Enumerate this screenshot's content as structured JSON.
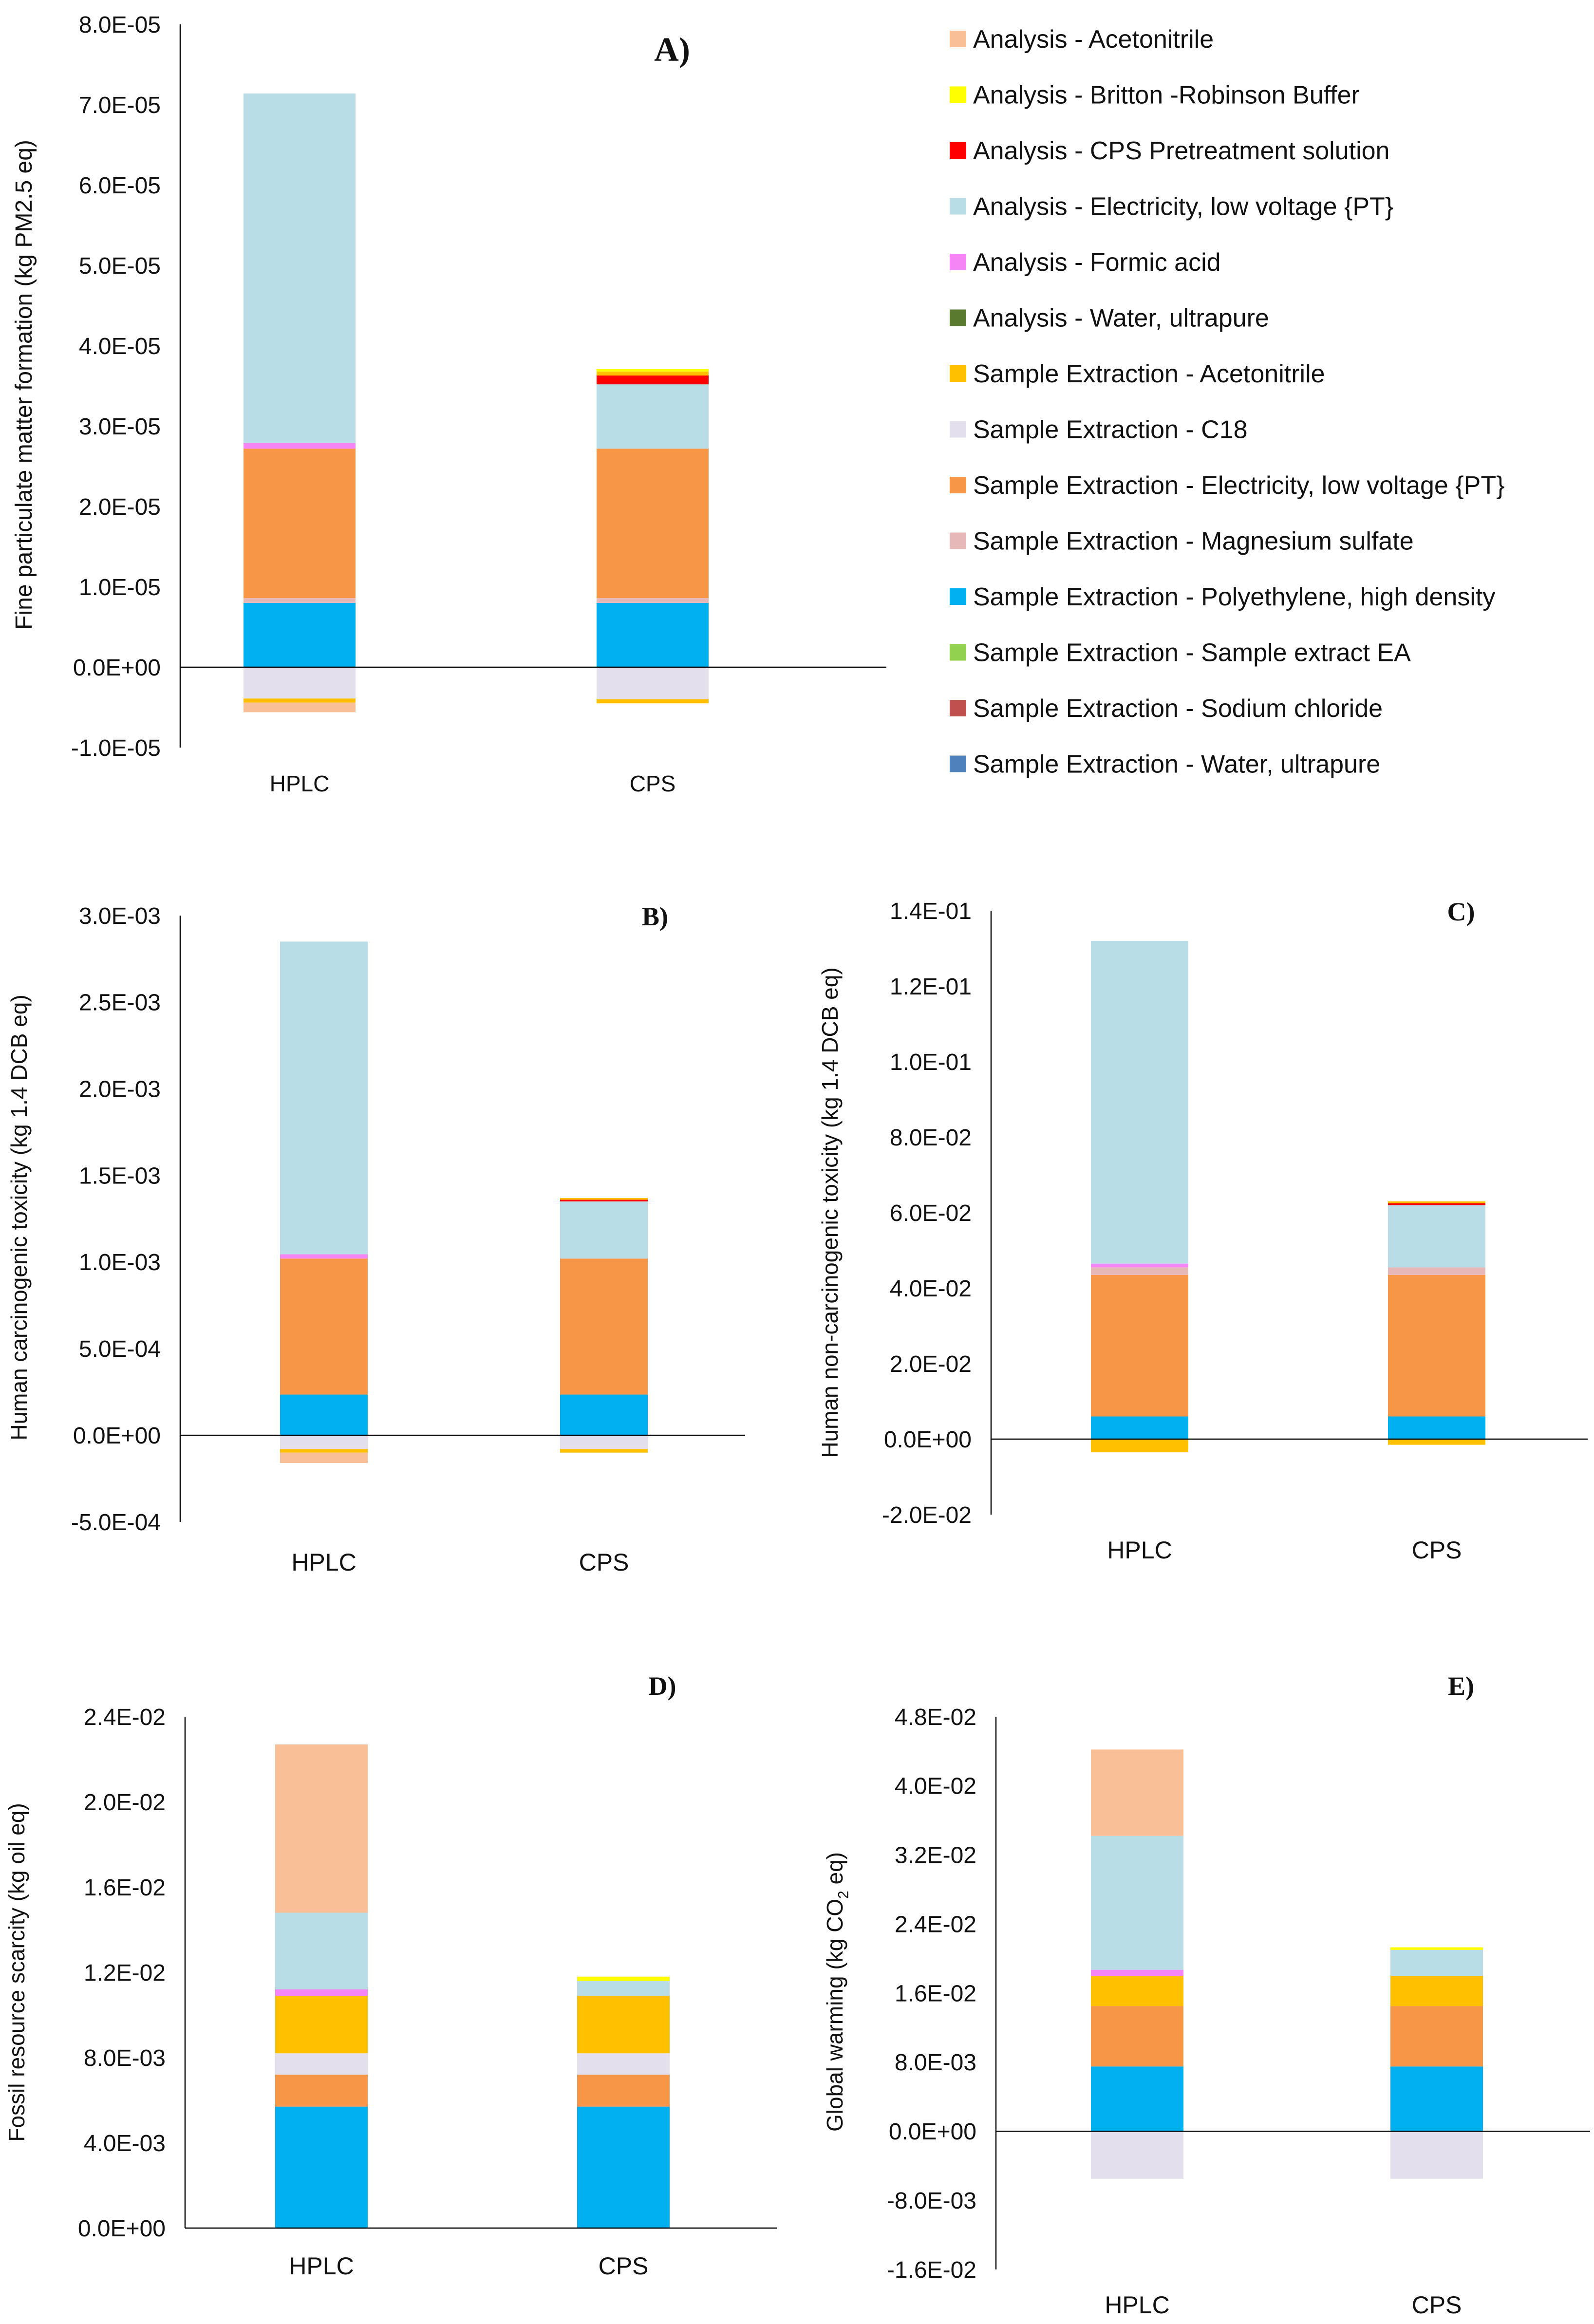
{
  "components": [
    {
      "key": "a_acn",
      "name": "Analysis - Acetonitrile",
      "color": "#F9C098"
    },
    {
      "key": "a_brb",
      "name": "Analysis - Britton -Robinson Buffer",
      "color": "#FFFF00"
    },
    {
      "key": "a_cps",
      "name": "Analysis - CPS Pretreatment solution",
      "color": "#FF0000"
    },
    {
      "key": "a_elec",
      "name": "Analysis - Electricity, low voltage {PT}",
      "color": "#B8DDE6"
    },
    {
      "key": "a_fa",
      "name": "Analysis - Formic acid",
      "color": "#F585F5"
    },
    {
      "key": "a_water",
      "name": "Analysis - Water, ultrapure",
      "color": "#5A7A30"
    },
    {
      "key": "s_acn",
      "name": "Sample Extraction - Acetonitrile",
      "color": "#FFC000"
    },
    {
      "key": "s_c18",
      "name": "Sample Extraction - C18",
      "color": "#E4DFEC"
    },
    {
      "key": "s_elec",
      "name": "Sample Extraction - Electricity, low voltage {PT}",
      "color": "#F79646"
    },
    {
      "key": "s_mgso4",
      "name": "Sample Extraction - Magnesium sulfate",
      "color": "#E6B8B7"
    },
    {
      "key": "s_hdpe",
      "name": "Sample Extraction - Polyethylene, high density",
      "color": "#00B0F0"
    },
    {
      "key": "s_ea",
      "name": "Sample Extraction - Sample extract EA",
      "color": "#92D050"
    },
    {
      "key": "s_nacl",
      "name": "Sample Extraction - Sodium chloride",
      "color": "#C0504D"
    },
    {
      "key": "s_water",
      "name": "Sample Extraction - Water, ultrapure",
      "color": "#4F81BD"
    }
  ],
  "chart_data": [
    {
      "id": "A",
      "type": "bar",
      "stacked": true,
      "title": "A)",
      "ylabel": "Fine particulate matter formation  (kg PM2.5 eq)",
      "ylim": [
        -1e-05,
        8e-05
      ],
      "yticks": [
        "8.0E-05",
        "7.0E-05",
        "6.0E-05",
        "5.0E-05",
        "4.0E-05",
        "3.0E-05",
        "2.0E-05",
        "1.0E-05",
        "0.0E+00",
        "-1.0E-05"
      ],
      "categories": [
        "HPLC",
        "CPS"
      ],
      "series": [
        {
          "key": "s_hdpe",
          "values": [
            8e-06,
            8e-06
          ]
        },
        {
          "key": "s_mgso4",
          "values": [
            6e-07,
            6e-07
          ]
        },
        {
          "key": "s_elec",
          "values": [
            1.86e-05,
            1.86e-05
          ]
        },
        {
          "key": "a_fa",
          "values": [
            7e-07,
            0
          ]
        },
        {
          "key": "a_elec",
          "values": [
            4.35e-05,
            8e-06
          ]
        },
        {
          "key": "a_cps",
          "values": [
            0,
            1.1e-06
          ]
        },
        {
          "key": "s_acn",
          "values": [
            0,
            5e-07
          ]
        },
        {
          "key": "a_brb",
          "values": [
            0,
            3e-07
          ]
        },
        {
          "key": "s_c18",
          "values": [
            -3.9e-06,
            -4e-06
          ]
        },
        {
          "key": "s_acn",
          "values": [
            -5e-07,
            -5e-07
          ],
          "negative": true
        },
        {
          "key": "a_acn",
          "values": [
            -1.2e-06,
            0
          ],
          "negative": true
        }
      ]
    },
    {
      "id": "B",
      "type": "bar",
      "stacked": true,
      "title": "B)",
      "ylabel": "Human carcinogenic toxicity (kg 1.4 DCB eq)",
      "ylim": [
        -0.0005,
        0.003
      ],
      "yticks": [
        "3.0E-03",
        "2.5E-03",
        "2.0E-03",
        "1.5E-03",
        "1.0E-03",
        "5.0E-04",
        "0.0E+00",
        "-5.0E-04"
      ],
      "categories": [
        "HPLC",
        "CPS"
      ],
      "series": [
        {
          "key": "s_hdpe",
          "values": [
            0.000235,
            0.000235
          ]
        },
        {
          "key": "s_elec",
          "values": [
            0.000785,
            0.000785
          ]
        },
        {
          "key": "a_fa",
          "values": [
            2.5e-05,
            0
          ]
        },
        {
          "key": "a_elec",
          "values": [
            0.001805,
            0.00033
          ]
        },
        {
          "key": "a_cps",
          "values": [
            0,
            1e-05
          ]
        },
        {
          "key": "s_acn",
          "values": [
            0,
            1e-05
          ]
        },
        {
          "key": "s_c18",
          "values": [
            -8e-05,
            -8e-05
          ]
        },
        {
          "key": "s_acn",
          "values": [
            -2e-05,
            -2e-05
          ],
          "negative": true
        },
        {
          "key": "a_acn",
          "values": [
            -6e-05,
            0
          ],
          "negative": true
        }
      ]
    },
    {
      "id": "C",
      "type": "bar",
      "stacked": true,
      "title": "C)",
      "ylabel": "Human non-carcinogenic toxicity (kg 1.4 DCB eq)",
      "ylim": [
        -0.02,
        0.14
      ],
      "yticks": [
        "1.4E-01",
        "1.2E-01",
        "1.0E-01",
        "8.0E-02",
        "6.0E-02",
        "4.0E-02",
        "2.0E-02",
        "0.0E+00",
        "-2.0E-02"
      ],
      "categories": [
        "HPLC",
        "CPS"
      ],
      "series": [
        {
          "key": "s_hdpe",
          "values": [
            0.006,
            0.006
          ]
        },
        {
          "key": "s_elec",
          "values": [
            0.0375,
            0.0375
          ]
        },
        {
          "key": "s_mgso4",
          "values": [
            0.002,
            0.002
          ]
        },
        {
          "key": "a_fa",
          "values": [
            0.001,
            0
          ]
        },
        {
          "key": "a_elec",
          "values": [
            0.0855,
            0.0165
          ]
        },
        {
          "key": "a_cps",
          "values": [
            0,
            0.0005
          ]
        },
        {
          "key": "s_acn",
          "values": [
            0,
            0.0005
          ]
        },
        {
          "key": "s_acn",
          "values": [
            -0.0035,
            -0.0015
          ],
          "negative": true
        }
      ]
    },
    {
      "id": "D",
      "type": "bar",
      "stacked": true,
      "title": "D)",
      "ylabel": "Fossil resource scarcity (kg oil eq)",
      "ylim": [
        0,
        0.024
      ],
      "yticks": [
        "2.4E-02",
        "2.0E-02",
        "1.6E-02",
        "1.2E-02",
        "8.0E-03",
        "4.0E-03",
        "0.0E+00"
      ],
      "categories": [
        "HPLC",
        "CPS"
      ],
      "series": [
        {
          "key": "s_hdpe",
          "values": [
            0.0057,
            0.0057
          ]
        },
        {
          "key": "s_elec",
          "values": [
            0.0015,
            0.0015
          ]
        },
        {
          "key": "s_c18",
          "values": [
            0.001,
            0.001
          ]
        },
        {
          "key": "s_acn",
          "values": [
            0.0027,
            0.0027
          ]
        },
        {
          "key": "a_fa",
          "values": [
            0.0003,
            0
          ]
        },
        {
          "key": "a_elec",
          "values": [
            0.0036,
            0.0007
          ]
        },
        {
          "key": "a_brb",
          "values": [
            0,
            0.0002
          ]
        },
        {
          "key": "a_acn",
          "values": [
            0.0079,
            0
          ]
        }
      ]
    },
    {
      "id": "E",
      "type": "bar",
      "stacked": true,
      "title": "E)",
      "ylabel": "Global warming (kg CO",
      "ylabel_sub": "2",
      "ylabel_end": " eq)",
      "ylim": [
        -0.016,
        0.048
      ],
      "yticks": [
        "4.8E-02",
        "4.0E-02",
        "3.2E-02",
        "2.4E-02",
        "1.6E-02",
        "8.0E-03",
        "0.0E+00",
        "-8.0E-03",
        "-1.6E-02"
      ],
      "categories": [
        "HPLC",
        "CPS"
      ],
      "series": [
        {
          "key": "s_hdpe",
          "values": [
            0.0075,
            0.0075
          ]
        },
        {
          "key": "s_elec",
          "values": [
            0.007,
            0.007
          ]
        },
        {
          "key": "s_acn",
          "values": [
            0.0035,
            0.0035
          ]
        },
        {
          "key": "a_fa",
          "values": [
            0.0007,
            0
          ]
        },
        {
          "key": "a_elec",
          "values": [
            0.0155,
            0.003
          ]
        },
        {
          "key": "a_brb",
          "values": [
            0,
            0.0003
          ]
        },
        {
          "key": "a_acn",
          "values": [
            0.01,
            0
          ]
        },
        {
          "key": "s_c18",
          "values": [
            -0.0055,
            -0.0055
          ]
        }
      ]
    }
  ]
}
